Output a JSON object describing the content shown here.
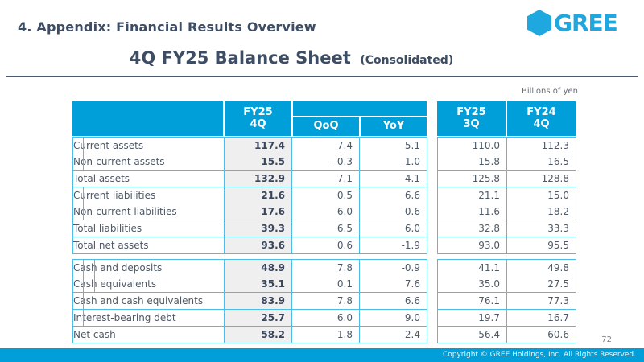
{
  "slide": {
    "header_title": "4. Appendix: Financial Results Overview",
    "subtitle": "4Q FY25 Balance Sheet",
    "subtitle_suffix": "(Consolidated)",
    "units_label": "Billions of yen",
    "page_number": "72",
    "footer_copyright": "Copyright © GREE Holdings, Inc. All Rights Reserved.",
    "logo_text": "GREE"
  },
  "colors": {
    "header_blue": "#019FD9",
    "border_blue": "#4BBDE8",
    "logo_blue": "#1FA8E0",
    "title_text": "#3D4D63",
    "value_column_bg": "#EFEFEF",
    "footer_blue": "#019FD9"
  },
  "balance_sheet": {
    "headers": {
      "fy25_4q_line1": "FY25",
      "fy25_4q_line2": "4Q",
      "qoq": "QoQ",
      "yoy": "YoY",
      "fy25_3q_line1": "FY25",
      "fy25_3q_line2": "3Q",
      "fy24_4q_line1": "FY24",
      "fy24_4q_line2": "4Q"
    },
    "columns": [
      "FY25 4Q",
      "QoQ",
      "YoY",
      "FY25 3Q",
      "FY24 4Q"
    ],
    "main_rows": [
      {
        "label": "Current assets",
        "indent": 1,
        "sep": false,
        "v": "117.4",
        "qoq": "7.4",
        "yoy": "5.1",
        "q3": "110.0",
        "q4": "112.3"
      },
      {
        "label": "Non-current assets",
        "indent": 1,
        "sep": true,
        "v": "15.5",
        "qoq": "-0.3",
        "yoy": "-1.0",
        "q3": "15.8",
        "q4": "16.5"
      },
      {
        "label": "Total assets",
        "indent": 0,
        "sep": true,
        "v": "132.9",
        "qoq": "7.1",
        "yoy": "4.1",
        "q3": "125.8",
        "q4": "128.8"
      },
      {
        "label": "Current liabilities",
        "indent": 1,
        "sep": false,
        "v": "21.6",
        "qoq": "0.5",
        "yoy": "6.6",
        "q3": "21.1",
        "q4": "15.0"
      },
      {
        "label": "Non-current liabilities",
        "indent": 1,
        "sep": true,
        "v": "17.6",
        "qoq": "6.0",
        "yoy": "-0.6",
        "q3": "11.6",
        "q4": "18.2"
      },
      {
        "label": "Total liabilities",
        "indent": 0,
        "sep": true,
        "v": "39.3",
        "qoq": "6.5",
        "yoy": "6.0",
        "q3": "32.8",
        "q4": "33.3"
      },
      {
        "label": "Total net assets",
        "indent": 0,
        "sep": true,
        "v": "93.6",
        "qoq": "0.6",
        "yoy": "-1.9",
        "q3": "93.0",
        "q4": "95.5"
      }
    ],
    "cash_rows": [
      {
        "label": "Cash and deposits",
        "indent": 2,
        "sep": false,
        "v": "48.9",
        "qoq": "7.8",
        "yoy": "-0.9",
        "q3": "41.1",
        "q4": "49.8"
      },
      {
        "label": "Cash equivalents",
        "indent": 2,
        "sep": true,
        "v": "35.1",
        "qoq": "0.1",
        "yoy": "7.6",
        "q3": "35.0",
        "q4": "27.5"
      },
      {
        "label": "Cash and cash equivalents",
        "indent": 1,
        "sep": true,
        "v": "83.9",
        "qoq": "7.8",
        "yoy": "6.6",
        "q3": "76.1",
        "q4": "77.3"
      },
      {
        "label": "Interest-bearing debt",
        "indent": 1,
        "sep": true,
        "v": "25.7",
        "qoq": "6.0",
        "yoy": "9.0",
        "q3": "19.7",
        "q4": "16.7"
      },
      {
        "label": "Net cash",
        "indent": 0,
        "sep": true,
        "v": "58.2",
        "qoq": "1.8",
        "yoy": "-2.4",
        "q3": "56.4",
        "q4": "60.6"
      }
    ]
  }
}
